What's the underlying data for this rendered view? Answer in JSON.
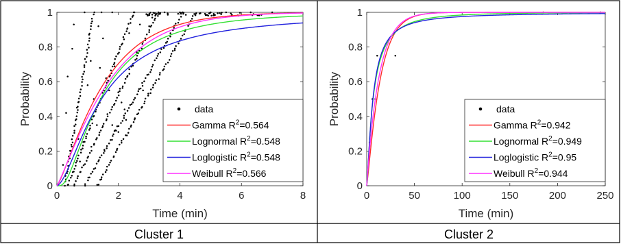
{
  "panels": [
    {
      "caption": "Cluster 1",
      "chart_data": {
        "type": "line",
        "xlabel": "Time (min)",
        "ylabel": "Probability",
        "xlim": [
          0,
          8
        ],
        "ylim": [
          0,
          1
        ],
        "x_ticks": [
          "0",
          "2",
          "4",
          "6",
          "8"
        ],
        "y_ticks": [
          "0",
          "0.2",
          "0.4",
          "0.6",
          "0.8",
          "1"
        ],
        "grid": false,
        "legend_position": "lower-right",
        "data_series": {
          "name": "data",
          "marker": "dot",
          "ramps": [
            {
              "x0": 0.25,
              "x1": 1.2,
              "n": 60
            },
            {
              "x0": 0.35,
              "x1": 2.5,
              "n": 70
            },
            {
              "x0": 0.55,
              "x1": 3.3,
              "n": 70
            },
            {
              "x0": 0.9,
              "x1": 4.1,
              "n": 75
            },
            {
              "x0": 1.3,
              "x1": 4.5,
              "n": 75
            }
          ],
          "scatter_points": [
            [
              0.2,
              0.12
            ],
            [
              0.3,
              0.42
            ],
            [
              0.35,
              0.63
            ],
            [
              0.5,
              0.79
            ],
            [
              0.55,
              0.93
            ],
            [
              0.7,
              0.27
            ],
            [
              0.75,
              0.14
            ],
            [
              0.9,
              1.0
            ],
            [
              1.1,
              0.72
            ],
            [
              1.2,
              0.5
            ],
            [
              1.35,
              0.92
            ],
            [
              1.5,
              0.85
            ],
            [
              1.45,
              1.0
            ],
            [
              1.55,
              0.2
            ],
            [
              1.65,
              0.4
            ],
            [
              1.8,
              0.35
            ],
            [
              1.9,
              0.32
            ],
            [
              2.0,
              0.31
            ],
            [
              2.05,
              0.56
            ],
            [
              2.1,
              0.48
            ],
            [
              2.2,
              0.44
            ],
            [
              2.25,
              0.38
            ],
            [
              1.6,
              0.62
            ],
            [
              1.7,
              0.55
            ],
            [
              1.4,
              0.68
            ],
            [
              0.45,
              0.2
            ],
            [
              0.65,
              0.45
            ],
            [
              1.0,
              0.58
            ],
            [
              1.3,
              0.35
            ],
            [
              1.85,
              0.7
            ],
            [
              2.35,
              0.88
            ],
            [
              2.6,
              0.77
            ],
            [
              2.8,
              0.55
            ],
            [
              2.7,
              0.93
            ],
            [
              3.1,
              0.97
            ],
            [
              3.3,
              0.99
            ],
            [
              3.5,
              1.0
            ],
            [
              4.0,
              1.0
            ],
            [
              5.0,
              1.0
            ],
            [
              5.5,
              1.0
            ],
            [
              6.3,
              1.0
            ],
            [
              7.0,
              1.0
            ],
            [
              1.8,
              1.0
            ],
            [
              2.5,
              1.0
            ],
            [
              3.0,
              0.92
            ]
          ],
          "plateau": {
            "x0": 2.9,
            "x1": 7.0,
            "n": 55,
            "y0": 0.98,
            "y1": 1.0
          }
        },
        "series": [
          {
            "name": "Gamma",
            "r2": "0.564",
            "color": "#ff2a2a",
            "dist": "gamma",
            "k": 1.3,
            "theta": 1.25
          },
          {
            "name": "Lognormal",
            "r2": "0.548",
            "color": "#33e033",
            "dist": "lognormal",
            "mu": 0.35,
            "sigma": 0.85
          },
          {
            "name": "Loglogistic",
            "r2": "0.548",
            "color": "#2222dd",
            "dist": "loglogistic",
            "alpha": 1.45,
            "beta": 1.6
          },
          {
            "name": "Weibull",
            "r2": "0.566",
            "color": "#ff33ff",
            "dist": "weibull",
            "lambda": 1.82,
            "k": 1.15
          }
        ]
      }
    },
    {
      "caption": "Cluster 2",
      "chart_data": {
        "type": "line",
        "xlabel": "Time (min)",
        "ylabel": "Probability",
        "xlim": [
          0,
          250
        ],
        "ylim": [
          0,
          1
        ],
        "x_ticks": [
          "0",
          "50",
          "100",
          "150",
          "200",
          "250"
        ],
        "y_ticks": [
          "0",
          "0.2",
          "0.4",
          "0.6",
          "0.8",
          "1"
        ],
        "grid": false,
        "legend_position": "lower-right",
        "data_series": {
          "name": "data",
          "marker": "dot",
          "scatter_points": [
            [
              3,
              0.25
            ],
            [
              6,
              0.5
            ],
            [
              9,
              0.5
            ],
            [
              11,
              0.75
            ],
            [
              30,
              0.75
            ],
            [
              185,
              1.0
            ],
            [
              245,
              1.0
            ]
          ]
        },
        "series": [
          {
            "name": "Gamma",
            "r2": "0.942",
            "color": "#ff2a2a",
            "dist": "gamma",
            "k": 1.2,
            "theta": 12
          },
          {
            "name": "Lognormal",
            "r2": "0.949",
            "color": "#33e033",
            "dist": "lognormal",
            "mu": 1.9,
            "sigma": 1.25
          },
          {
            "name": "Loglogistic",
            "r2": "0.95",
            "color": "#2222dd",
            "dist": "loglogistic",
            "alpha": 6.5,
            "beta": 1.35
          },
          {
            "name": "Weibull",
            "r2": "0.944",
            "color": "#ff33ff",
            "dist": "weibull",
            "lambda": 13,
            "k": 1.0
          }
        ]
      }
    }
  ]
}
